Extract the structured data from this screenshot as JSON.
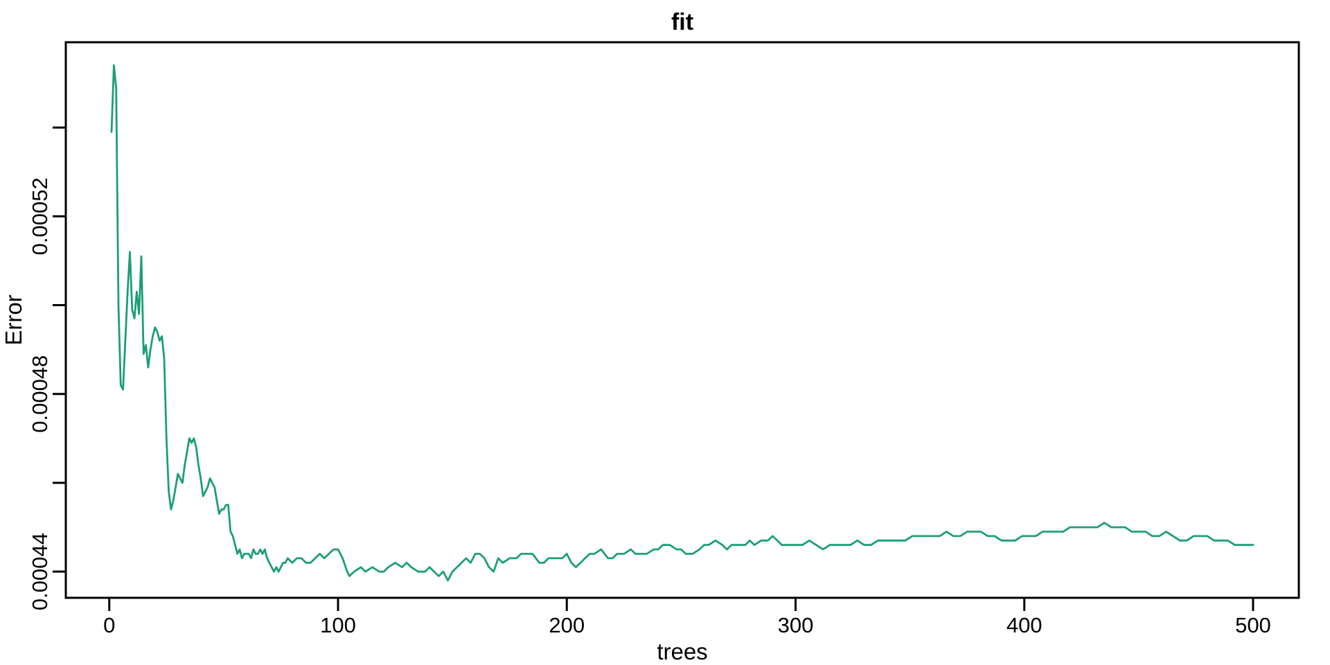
{
  "title": "fit",
  "chart_data": {
    "type": "line",
    "title": "fit",
    "xlabel": "trees",
    "ylabel": "Error",
    "grid": false,
    "legend": null,
    "xlim": [
      -19,
      520
    ],
    "ylim": [
      0.0004341,
      0.0005592
    ],
    "x_ticks": [
      {
        "value": 0,
        "label": "0"
      },
      {
        "value": 100,
        "label": "100"
      },
      {
        "value": 200,
        "label": "200"
      },
      {
        "value": 300,
        "label": "300"
      },
      {
        "value": 400,
        "label": "400"
      },
      {
        "value": 500,
        "label": "500"
      }
    ],
    "y_ticks": [
      {
        "value": 0.00044,
        "label": "0.00044"
      },
      {
        "value": 0.00046,
        "label": ""
      },
      {
        "value": 0.00048,
        "label": "0.00048"
      },
      {
        "value": 0.0005,
        "label": ""
      },
      {
        "value": 0.00052,
        "label": "0.00052"
      },
      {
        "value": 0.00054,
        "label": ""
      }
    ],
    "series": [
      {
        "name": "error",
        "color": "#1b9e77",
        "points": [
          [
            1,
            0.000539
          ],
          [
            2,
            0.000554
          ],
          [
            3,
            0.000549
          ],
          [
            4,
            0.0005
          ],
          [
            5,
            0.000482
          ],
          [
            6,
            0.000481
          ],
          [
            7,
            0.000492
          ],
          [
            8,
            0.000503
          ],
          [
            9,
            0.000512
          ],
          [
            10,
            0.000499
          ],
          [
            11,
            0.000497
          ],
          [
            12,
            0.000503
          ],
          [
            13,
            0.000498
          ],
          [
            14,
            0.000511
          ],
          [
            15,
            0.000489
          ],
          [
            16,
            0.000491
          ],
          [
            17,
            0.000486
          ],
          [
            18,
            0.00049
          ],
          [
            19,
            0.000493
          ],
          [
            20,
            0.000495
          ],
          [
            21,
            0.000494
          ],
          [
            22,
            0.000492
          ],
          [
            23,
            0.000493
          ],
          [
            24,
            0.000488
          ],
          [
            25,
            0.00047
          ],
          [
            26,
            0.000458
          ],
          [
            27,
            0.000454
          ],
          [
            28,
            0.000456
          ],
          [
            29,
            0.000459
          ],
          [
            30,
            0.000462
          ],
          [
            31,
            0.000461
          ],
          [
            32,
            0.00046
          ],
          [
            33,
            0.000464
          ],
          [
            34,
            0.000467
          ],
          [
            35,
            0.00047
          ],
          [
            36,
            0.000469
          ],
          [
            37,
            0.00047
          ],
          [
            38,
            0.000468
          ],
          [
            39,
            0.000464
          ],
          [
            40,
            0.000461
          ],
          [
            41,
            0.000457
          ],
          [
            42,
            0.000458
          ],
          [
            43,
            0.000459
          ],
          [
            44,
            0.000461
          ],
          [
            45,
            0.00046
          ],
          [
            46,
            0.000459
          ],
          [
            47,
            0.000456
          ],
          [
            48,
            0.000453
          ],
          [
            49,
            0.000454
          ],
          [
            50,
            0.000454
          ],
          [
            51,
            0.000455
          ],
          [
            52,
            0.000455
          ],
          [
            53,
            0.000449
          ],
          [
            54,
            0.000448
          ],
          [
            55,
            0.000446
          ],
          [
            56,
            0.000444
          ],
          [
            57,
            0.000445
          ],
          [
            58,
            0.000443
          ],
          [
            59,
            0.000444
          ],
          [
            60,
            0.000444
          ],
          [
            61,
            0.000444
          ],
          [
            62,
            0.000443
          ],
          [
            63,
            0.000445
          ],
          [
            64,
            0.000444
          ],
          [
            65,
            0.000444
          ],
          [
            66,
            0.000445
          ],
          [
            67,
            0.000444
          ],
          [
            68,
            0.000445
          ],
          [
            69,
            0.000443
          ],
          [
            70,
            0.000442
          ],
          [
            71,
            0.000441
          ],
          [
            72,
            0.00044
          ],
          [
            73,
            0.000441
          ],
          [
            74,
            0.00044
          ],
          [
            75,
            0.000441
          ],
          [
            76,
            0.000442
          ],
          [
            77,
            0.000442
          ],
          [
            78,
            0.000443
          ],
          [
            80,
            0.000442
          ],
          [
            82,
            0.000443
          ],
          [
            84,
            0.000443
          ],
          [
            86,
            0.000442
          ],
          [
            88,
            0.000442
          ],
          [
            90,
            0.000443
          ],
          [
            92,
            0.000444
          ],
          [
            94,
            0.000443
          ],
          [
            96,
            0.000444
          ],
          [
            98,
            0.000445
          ],
          [
            100,
            0.000445
          ],
          [
            102,
            0.000443
          ],
          [
            104,
            0.00044
          ],
          [
            105,
            0.000439
          ],
          [
            107,
            0.00044
          ],
          [
            110,
            0.000441
          ],
          [
            112,
            0.00044
          ],
          [
            115,
            0.000441
          ],
          [
            118,
            0.00044
          ],
          [
            120,
            0.00044
          ],
          [
            122,
            0.000441
          ],
          [
            125,
            0.000442
          ],
          [
            128,
            0.000441
          ],
          [
            130,
            0.000442
          ],
          [
            132,
            0.000441
          ],
          [
            135,
            0.00044
          ],
          [
            138,
            0.00044
          ],
          [
            140,
            0.000441
          ],
          [
            142,
            0.00044
          ],
          [
            144,
            0.000439
          ],
          [
            146,
            0.00044
          ],
          [
            148,
            0.000438
          ],
          [
            150,
            0.00044
          ],
          [
            152,
            0.000441
          ],
          [
            154,
            0.000442
          ],
          [
            156,
            0.000443
          ],
          [
            158,
            0.000442
          ],
          [
            160,
            0.000444
          ],
          [
            162,
            0.000444
          ],
          [
            164,
            0.000443
          ],
          [
            166,
            0.000441
          ],
          [
            168,
            0.00044
          ],
          [
            170,
            0.000443
          ],
          [
            172,
            0.000442
          ],
          [
            175,
            0.000443
          ],
          [
            178,
            0.000443
          ],
          [
            180,
            0.000444
          ],
          [
            182,
            0.000444
          ],
          [
            185,
            0.000444
          ],
          [
            188,
            0.000442
          ],
          [
            190,
            0.000442
          ],
          [
            192,
            0.000443
          ],
          [
            195,
            0.000443
          ],
          [
            198,
            0.000443
          ],
          [
            200,
            0.000444
          ],
          [
            202,
            0.000442
          ],
          [
            204,
            0.000441
          ],
          [
            206,
            0.000442
          ],
          [
            208,
            0.000443
          ],
          [
            210,
            0.000444
          ],
          [
            212,
            0.000444
          ],
          [
            215,
            0.000445
          ],
          [
            218,
            0.000443
          ],
          [
            220,
            0.000443
          ],
          [
            222,
            0.000444
          ],
          [
            225,
            0.000444
          ],
          [
            228,
            0.000445
          ],
          [
            230,
            0.000444
          ],
          [
            232,
            0.000444
          ],
          [
            235,
            0.000444
          ],
          [
            238,
            0.000445
          ],
          [
            240,
            0.000445
          ],
          [
            242,
            0.000446
          ],
          [
            245,
            0.000446
          ],
          [
            248,
            0.000445
          ],
          [
            250,
            0.000445
          ],
          [
            252,
            0.000444
          ],
          [
            255,
            0.000444
          ],
          [
            258,
            0.000445
          ],
          [
            260,
            0.000446
          ],
          [
            262,
            0.000446
          ],
          [
            265,
            0.000447
          ],
          [
            268,
            0.000446
          ],
          [
            270,
            0.000445
          ],
          [
            272,
            0.000446
          ],
          [
            275,
            0.000446
          ],
          [
            278,
            0.000446
          ],
          [
            280,
            0.000447
          ],
          [
            282,
            0.000446
          ],
          [
            285,
            0.000447
          ],
          [
            288,
            0.000447
          ],
          [
            290,
            0.000448
          ],
          [
            292,
            0.000447
          ],
          [
            294,
            0.000446
          ],
          [
            296,
            0.000446
          ],
          [
            298,
            0.000446
          ],
          [
            300,
            0.000446
          ],
          [
            303,
            0.000446
          ],
          [
            306,
            0.000447
          ],
          [
            309,
            0.000446
          ],
          [
            312,
            0.000445
          ],
          [
            315,
            0.000446
          ],
          [
            318,
            0.000446
          ],
          [
            321,
            0.000446
          ],
          [
            324,
            0.000446
          ],
          [
            327,
            0.000447
          ],
          [
            330,
            0.000446
          ],
          [
            333,
            0.000446
          ],
          [
            336,
            0.000447
          ],
          [
            339,
            0.000447
          ],
          [
            342,
            0.000447
          ],
          [
            345,
            0.000447
          ],
          [
            348,
            0.000447
          ],
          [
            351,
            0.000448
          ],
          [
            354,
            0.000448
          ],
          [
            357,
            0.000448
          ],
          [
            360,
            0.000448
          ],
          [
            363,
            0.000448
          ],
          [
            366,
            0.000449
          ],
          [
            369,
            0.000448
          ],
          [
            372,
            0.000448
          ],
          [
            375,
            0.000449
          ],
          [
            378,
            0.000449
          ],
          [
            381,
            0.000449
          ],
          [
            384,
            0.000448
          ],
          [
            387,
            0.000448
          ],
          [
            390,
            0.000447
          ],
          [
            393,
            0.000447
          ],
          [
            396,
            0.000447
          ],
          [
            399,
            0.000448
          ],
          [
            402,
            0.000448
          ],
          [
            405,
            0.000448
          ],
          [
            408,
            0.000449
          ],
          [
            411,
            0.000449
          ],
          [
            414,
            0.000449
          ],
          [
            417,
            0.000449
          ],
          [
            420,
            0.00045
          ],
          [
            423,
            0.00045
          ],
          [
            426,
            0.00045
          ],
          [
            429,
            0.00045
          ],
          [
            432,
            0.00045
          ],
          [
            435,
            0.000451
          ],
          [
            438,
            0.00045
          ],
          [
            441,
            0.00045
          ],
          [
            444,
            0.00045
          ],
          [
            447,
            0.000449
          ],
          [
            450,
            0.000449
          ],
          [
            453,
            0.000449
          ],
          [
            456,
            0.000448
          ],
          [
            459,
            0.000448
          ],
          [
            462,
            0.000449
          ],
          [
            465,
            0.000448
          ],
          [
            468,
            0.000447
          ],
          [
            471,
            0.000447
          ],
          [
            474,
            0.000448
          ],
          [
            477,
            0.000448
          ],
          [
            480,
            0.000448
          ],
          [
            483,
            0.000447
          ],
          [
            486,
            0.000447
          ],
          [
            489,
            0.000447
          ],
          [
            492,
            0.000446
          ],
          [
            495,
            0.000446
          ],
          [
            498,
            0.000446
          ],
          [
            500,
            0.000446
          ]
        ]
      }
    ],
    "frame_color": "#000000",
    "background_color": "#ffffff"
  }
}
